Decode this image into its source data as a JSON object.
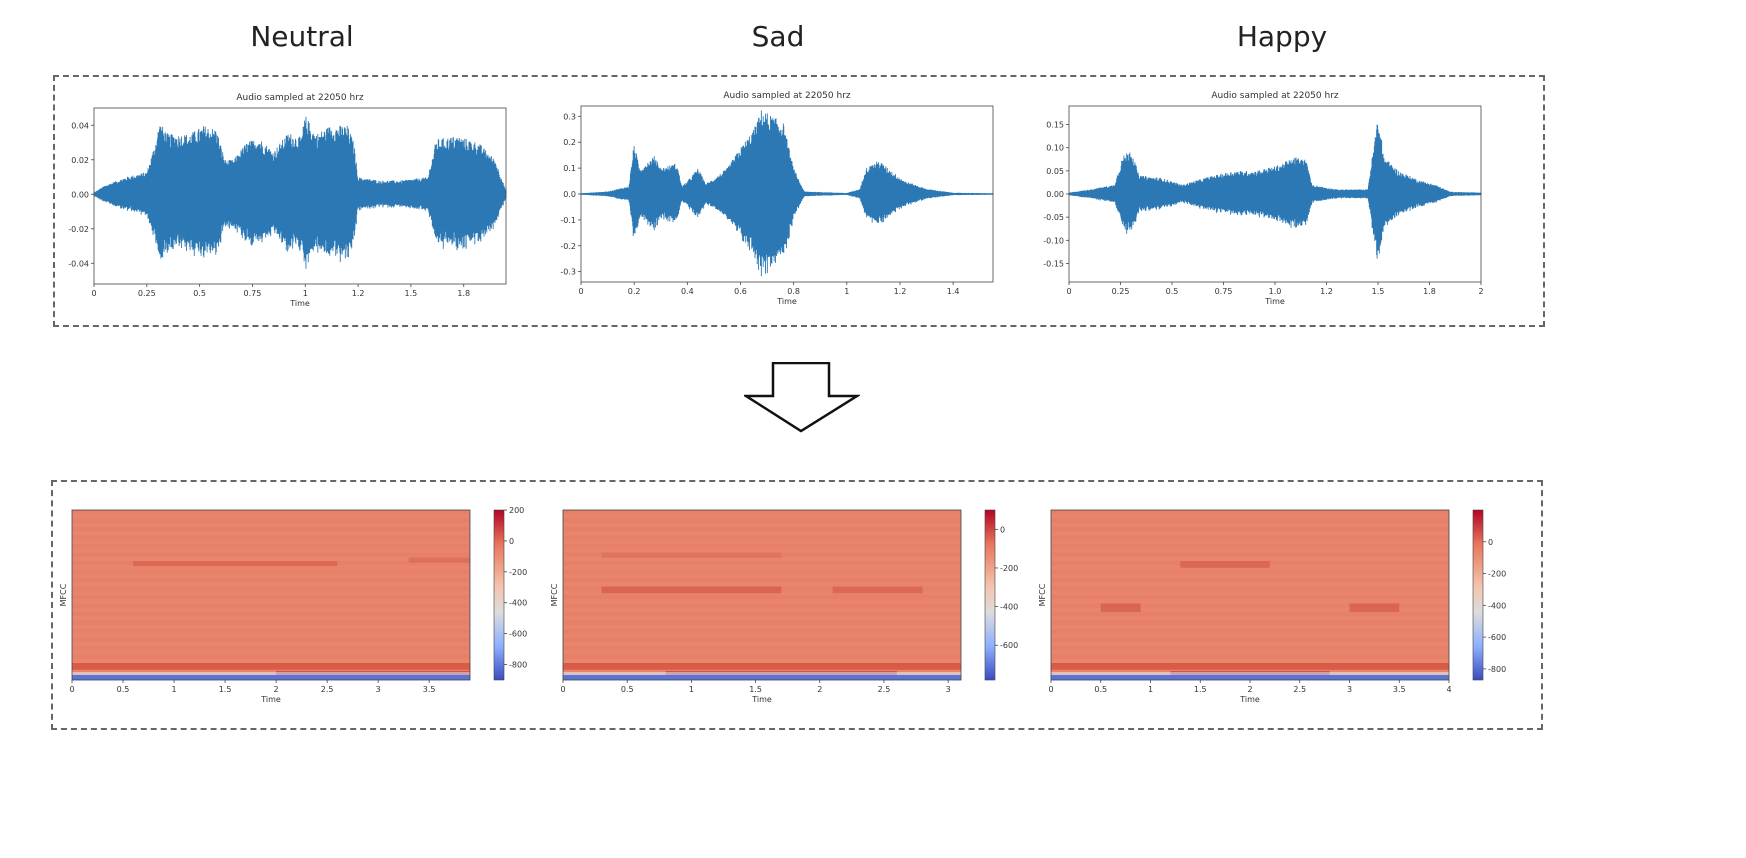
{
  "column_titles": [
    "Neutral",
    "Sad",
    "Happy"
  ],
  "waveforms": [
    {
      "title": "Audio sampled at 22050 hrz",
      "xlabel": "Time",
      "color": "#2b78b4",
      "xlim": [
        0,
        1.95
      ],
      "ylim": [
        -0.052,
        0.05
      ],
      "xticks": [
        "0",
        "0.25",
        "0.5",
        "0.75",
        "1",
        "1.2",
        "1.5",
        "1.8"
      ],
      "xtick_values": [
        0,
        0.25,
        0.5,
        0.75,
        1.0,
        1.25,
        1.5,
        1.75
      ],
      "yticks": [
        "0.04",
        "0.02",
        "0.00",
        "-0.02",
        "-0.04"
      ],
      "ytick_values": [
        0.04,
        0.02,
        0.0,
        -0.02,
        -0.04
      ],
      "envelope": [
        [
          0.0,
          0.001
        ],
        [
          0.05,
          0.005
        ],
        [
          0.15,
          0.01
        ],
        [
          0.25,
          0.013
        ],
        [
          0.29,
          0.03
        ],
        [
          0.31,
          0.042
        ],
        [
          0.35,
          0.035
        ],
        [
          0.45,
          0.035
        ],
        [
          0.52,
          0.04
        ],
        [
          0.58,
          0.038
        ],
        [
          0.62,
          0.02
        ],
        [
          0.66,
          0.02
        ],
        [
          0.72,
          0.03
        ],
        [
          0.78,
          0.033
        ],
        [
          0.85,
          0.025
        ],
        [
          0.92,
          0.036
        ],
        [
          0.98,
          0.033
        ],
        [
          1.0,
          0.046
        ],
        [
          1.05,
          0.035
        ],
        [
          1.12,
          0.04
        ],
        [
          1.2,
          0.04
        ],
        [
          1.23,
          0.03
        ],
        [
          1.25,
          0.01
        ],
        [
          1.35,
          0.008
        ],
        [
          1.45,
          0.008
        ],
        [
          1.58,
          0.01
        ],
        [
          1.62,
          0.032
        ],
        [
          1.72,
          0.034
        ],
        [
          1.82,
          0.03
        ],
        [
          1.9,
          0.02
        ],
        [
          1.95,
          0.002
        ]
      ]
    },
    {
      "title": "Audio sampled at 22050 hrz",
      "xlabel": "Time",
      "color": "#2b78b4",
      "xlim": [
        0,
        1.55
      ],
      "ylim": [
        -0.34,
        0.34
      ],
      "xticks": [
        "0",
        "0.2",
        "0.4",
        "0.6",
        "0.8",
        "1",
        "1.2",
        "1.4"
      ],
      "xtick_values": [
        0,
        0.2,
        0.4,
        0.6,
        0.8,
        1.0,
        1.2,
        1.4
      ],
      "yticks": [
        "0.3",
        "0.2",
        "0.1",
        "0.0",
        "-0.1",
        "-0.2",
        "-0.3"
      ],
      "ytick_values": [
        0.3,
        0.2,
        0.1,
        0.0,
        -0.1,
        -0.2,
        -0.3
      ],
      "envelope": [
        [
          0.0,
          0.003
        ],
        [
          0.1,
          0.01
        ],
        [
          0.18,
          0.03
        ],
        [
          0.2,
          0.2
        ],
        [
          0.22,
          0.1
        ],
        [
          0.28,
          0.15
        ],
        [
          0.3,
          0.1
        ],
        [
          0.36,
          0.12
        ],
        [
          0.38,
          0.03
        ],
        [
          0.4,
          0.05
        ],
        [
          0.44,
          0.1
        ],
        [
          0.47,
          0.04
        ],
        [
          0.5,
          0.06
        ],
        [
          0.55,
          0.1
        ],
        [
          0.6,
          0.18
        ],
        [
          0.65,
          0.25
        ],
        [
          0.68,
          0.33
        ],
        [
          0.72,
          0.3
        ],
        [
          0.76,
          0.28
        ],
        [
          0.8,
          0.1
        ],
        [
          0.84,
          0.01
        ],
        [
          1.0,
          0.004
        ],
        [
          1.05,
          0.02
        ],
        [
          1.07,
          0.1
        ],
        [
          1.12,
          0.13
        ],
        [
          1.18,
          0.08
        ],
        [
          1.22,
          0.05
        ],
        [
          1.3,
          0.02
        ],
        [
          1.4,
          0.005
        ],
        [
          1.55,
          0.003
        ]
      ]
    },
    {
      "title": "Audio sampled at 22050 hrz",
      "xlabel": "Time",
      "color": "#2b78b4",
      "xlim": [
        0,
        2.0
      ],
      "ylim": [
        -0.19,
        0.19
      ],
      "xticks": [
        "0",
        "0.25",
        "0.5",
        "0.75",
        "1.0",
        "1.2",
        "1.5",
        "1.8",
        "2"
      ],
      "xtick_values": [
        0,
        0.25,
        0.5,
        0.75,
        1.0,
        1.25,
        1.5,
        1.75,
        2.0
      ],
      "yticks": [
        "0.15",
        "0.10",
        "0.05",
        "0.00",
        "-0.05",
        "-0.10",
        "-0.15"
      ],
      "ytick_values": [
        0.15,
        0.1,
        0.05,
        0.0,
        -0.05,
        -0.1,
        -0.15
      ],
      "envelope": [
        [
          0.0,
          0.003
        ],
        [
          0.1,
          0.01
        ],
        [
          0.22,
          0.02
        ],
        [
          0.26,
          0.08
        ],
        [
          0.3,
          0.1
        ],
        [
          0.34,
          0.04
        ],
        [
          0.45,
          0.035
        ],
        [
          0.55,
          0.02
        ],
        [
          0.62,
          0.03
        ],
        [
          0.7,
          0.04
        ],
        [
          0.8,
          0.05
        ],
        [
          0.9,
          0.05
        ],
        [
          1.0,
          0.06
        ],
        [
          1.1,
          0.08
        ],
        [
          1.15,
          0.075
        ],
        [
          1.18,
          0.02
        ],
        [
          1.3,
          0.01
        ],
        [
          1.45,
          0.01
        ],
        [
          1.5,
          0.17
        ],
        [
          1.53,
          0.08
        ],
        [
          1.6,
          0.05
        ],
        [
          1.7,
          0.03
        ],
        [
          1.78,
          0.02
        ],
        [
          1.85,
          0.005
        ],
        [
          2.0,
          0.003
        ]
      ]
    }
  ],
  "mfccs": [
    {
      "xlabel": "Time",
      "ylabel": "MFCC",
      "xlim": [
        0,
        3.9
      ],
      "xticks": [
        "0",
        "0.5",
        "1",
        "1.5",
        "2",
        "2.5",
        "3",
        "3.5"
      ],
      "xtick_values": [
        0,
        0.5,
        1.0,
        1.5,
        2.0,
        2.5,
        3.0,
        3.5
      ],
      "colorbar_range": [
        -900,
        200
      ],
      "colorbar_ticks": [
        "200",
        "0",
        "-200",
        "-400",
        "-600",
        "-800"
      ],
      "colorbar_tick_values": [
        200,
        0,
        -200,
        -400,
        -600,
        -800
      ],
      "base_color": "#e8826a",
      "bands": [
        {
          "x0": 0.6,
          "x1": 2.6,
          "y": 0.3,
          "h": 0.03,
          "color": "#d9654f"
        },
        {
          "x0": 3.3,
          "x1": 3.9,
          "y": 0.28,
          "h": 0.03,
          "color": "#dc6b55"
        },
        {
          "x0": 0.0,
          "x1": 3.9,
          "y": 0.9,
          "h": 0.04,
          "color": "#d5553f"
        },
        {
          "x0": 2.0,
          "x1": 3.9,
          "y": 0.95,
          "h": 0.025,
          "color": "#b40426"
        }
      ]
    },
    {
      "xlabel": "Time",
      "ylabel": "MFCC",
      "xlim": [
        0,
        3.1
      ],
      "xticks": [
        "0",
        "0.5",
        "1",
        "1.5",
        "2",
        "2.5",
        "3"
      ],
      "xtick_values": [
        0,
        0.5,
        1.0,
        1.5,
        2.0,
        2.5,
        3.0
      ],
      "colorbar_range": [
        -780,
        100
      ],
      "colorbar_ticks": [
        "0",
        "-200",
        "-400",
        "-600"
      ],
      "colorbar_tick_values": [
        0,
        -200,
        -400,
        -600
      ],
      "base_color": "#e8826a",
      "bands": [
        {
          "x0": 0.3,
          "x1": 1.7,
          "y": 0.45,
          "h": 0.04,
          "color": "#d6604b"
        },
        {
          "x0": 2.1,
          "x1": 2.8,
          "y": 0.45,
          "h": 0.04,
          "color": "#d86450"
        },
        {
          "x0": 0.3,
          "x1": 1.7,
          "y": 0.25,
          "h": 0.03,
          "color": "#de735d"
        },
        {
          "x0": 0.0,
          "x1": 3.1,
          "y": 0.9,
          "h": 0.04,
          "color": "#d5553f"
        },
        {
          "x0": 0.8,
          "x1": 2.6,
          "y": 0.95,
          "h": 0.025,
          "color": "#b40426"
        }
      ]
    },
    {
      "xlabel": "Time",
      "ylabel": "MFCC",
      "xlim": [
        0,
        4.0
      ],
      "xticks": [
        "0",
        "0.5",
        "1",
        "1.5",
        "2",
        "2.5",
        "3",
        "3.5",
        "4"
      ],
      "xtick_values": [
        0,
        0.5,
        1.0,
        1.5,
        2.0,
        2.5,
        3.0,
        3.5,
        4.0
      ],
      "colorbar_range": [
        -870,
        200
      ],
      "colorbar_ticks": [
        "0",
        "-200",
        "-400",
        "-600",
        "-800"
      ],
      "colorbar_tick_values": [
        0,
        -200,
        -400,
        -600,
        -800
      ],
      "base_color": "#e8826a",
      "bands": [
        {
          "x0": 0.5,
          "x1": 0.9,
          "y": 0.55,
          "h": 0.05,
          "color": "#d6604b"
        },
        {
          "x0": 1.3,
          "x1": 2.2,
          "y": 0.3,
          "h": 0.04,
          "color": "#d86450"
        },
        {
          "x0": 3.0,
          "x1": 3.5,
          "y": 0.55,
          "h": 0.05,
          "color": "#d6604b"
        },
        {
          "x0": 0.0,
          "x1": 4.0,
          "y": 0.9,
          "h": 0.04,
          "color": "#d5553f"
        },
        {
          "x0": 1.2,
          "x1": 2.8,
          "y": 0.95,
          "h": 0.025,
          "color": "#b40426"
        }
      ]
    }
  ]
}
